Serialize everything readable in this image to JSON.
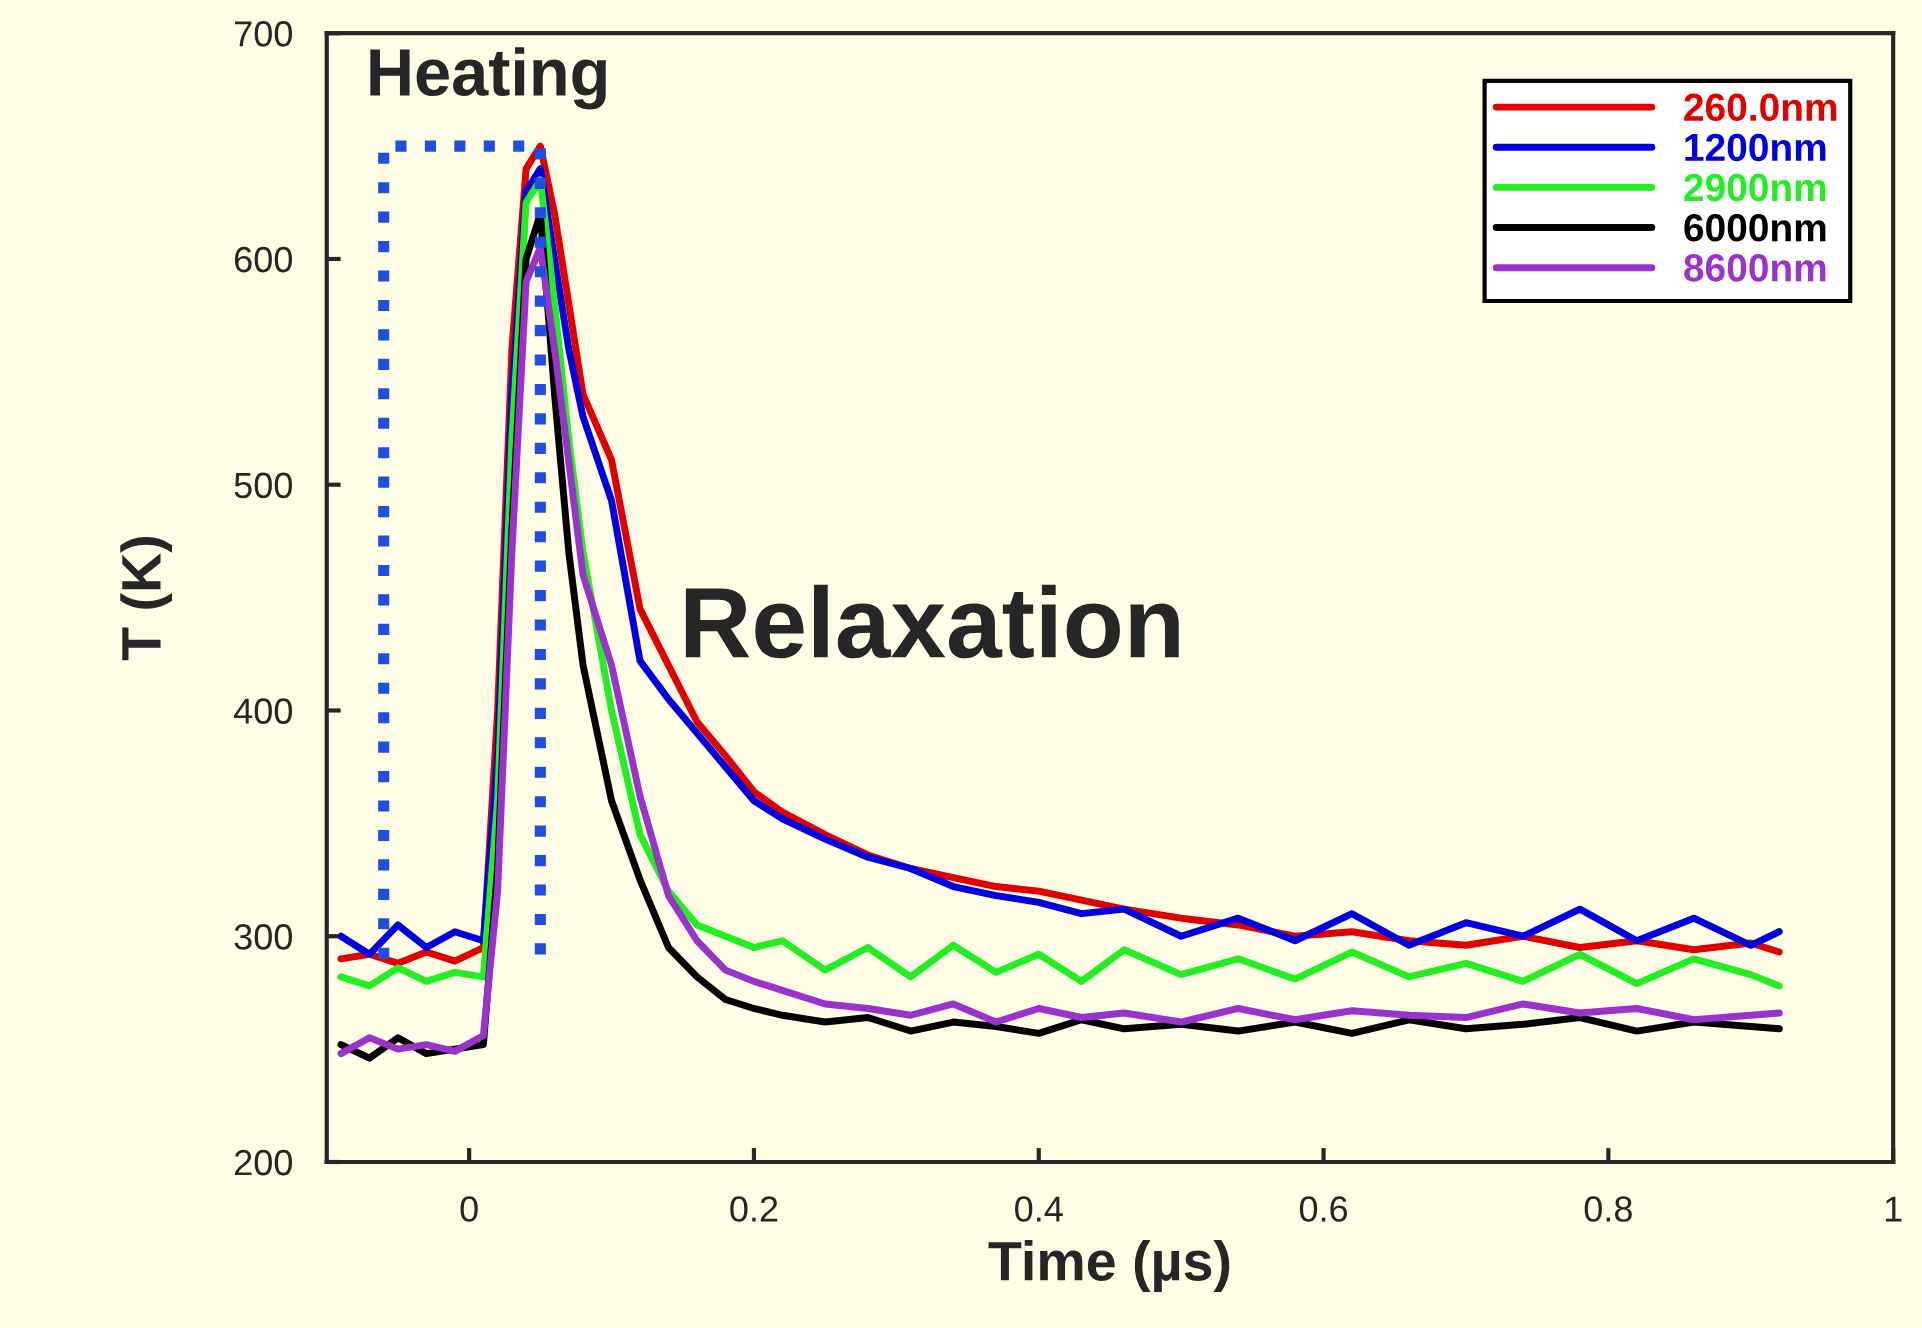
{
  "chart_data": {
    "type": "line",
    "xlabel": "Time (µs)",
    "ylabel": "T (K)",
    "series": [
      {
        "name": "260.0nm",
        "color": "#e00000",
        "x": [
          -0.09,
          -0.07,
          -0.05,
          -0.03,
          -0.01,
          0.01,
          0.02,
          0.03,
          0.04,
          0.05,
          0.06,
          0.07,
          0.08,
          0.1,
          0.12,
          0.14,
          0.16,
          0.18,
          0.2,
          0.22,
          0.25,
          0.28,
          0.31,
          0.34,
          0.37,
          0.4,
          0.43,
          0.46,
          0.5,
          0.54,
          0.58,
          0.62,
          0.66,
          0.7,
          0.74,
          0.78,
          0.82,
          0.86,
          0.9,
          0.92
        ],
        "values": [
          290,
          292,
          288,
          293,
          289,
          295,
          400,
          560,
          640,
          650,
          620,
          580,
          540,
          511,
          445,
          420,
          395,
          380,
          364,
          355,
          345,
          336,
          330,
          326,
          322,
          320,
          316,
          312,
          308,
          305,
          300,
          302,
          298,
          296,
          300,
          295,
          298,
          294,
          297,
          293
        ]
      },
      {
        "name": "1200nm",
        "color": "#0000e0",
        "x": [
          -0.09,
          -0.07,
          -0.05,
          -0.03,
          -0.01,
          0.01,
          0.02,
          0.03,
          0.04,
          0.05,
          0.06,
          0.07,
          0.08,
          0.1,
          0.12,
          0.14,
          0.16,
          0.18,
          0.2,
          0.22,
          0.25,
          0.28,
          0.31,
          0.34,
          0.37,
          0.4,
          0.43,
          0.46,
          0.5,
          0.54,
          0.58,
          0.62,
          0.66,
          0.7,
          0.74,
          0.78,
          0.82,
          0.86,
          0.9,
          0.92
        ],
        "values": [
          300,
          292,
          305,
          295,
          302,
          298,
          380,
          540,
          630,
          640,
          600,
          560,
          530,
          493,
          422,
          405,
          390,
          375,
          360,
          352,
          343,
          335,
          330,
          322,
          318,
          315,
          310,
          312,
          300,
          308,
          298,
          310,
          296,
          306,
          300,
          312,
          298,
          308,
          296,
          302
        ]
      },
      {
        "name": "2900nm",
        "color": "#22ee22",
        "x": [
          -0.09,
          -0.07,
          -0.05,
          -0.03,
          -0.01,
          0.01,
          0.02,
          0.03,
          0.04,
          0.05,
          0.06,
          0.07,
          0.08,
          0.1,
          0.12,
          0.14,
          0.16,
          0.18,
          0.2,
          0.22,
          0.25,
          0.28,
          0.31,
          0.34,
          0.37,
          0.4,
          0.43,
          0.46,
          0.5,
          0.54,
          0.58,
          0.62,
          0.66,
          0.7,
          0.74,
          0.78,
          0.82,
          0.86,
          0.9,
          0.92
        ],
        "values": [
          282,
          278,
          286,
          280,
          284,
          282,
          360,
          520,
          625,
          635,
          580,
          520,
          470,
          400,
          345,
          320,
          305,
          300,
          295,
          298,
          285,
          295,
          282,
          296,
          284,
          292,
          280,
          294,
          283,
          290,
          281,
          293,
          282,
          288,
          280,
          292,
          279,
          290,
          283,
          278
        ]
      },
      {
        "name": "6000nm",
        "color": "#000000",
        "x": [
          -0.09,
          -0.07,
          -0.05,
          -0.03,
          -0.01,
          0.01,
          0.02,
          0.03,
          0.04,
          0.05,
          0.06,
          0.07,
          0.08,
          0.1,
          0.12,
          0.14,
          0.16,
          0.18,
          0.2,
          0.22,
          0.25,
          0.28,
          0.31,
          0.34,
          0.37,
          0.4,
          0.43,
          0.46,
          0.5,
          0.54,
          0.58,
          0.62,
          0.66,
          0.7,
          0.74,
          0.78,
          0.82,
          0.86,
          0.9,
          0.92
        ],
        "values": [
          252,
          246,
          255,
          248,
          250,
          252,
          330,
          480,
          600,
          620,
          540,
          470,
          420,
          360,
          325,
          295,
          282,
          272,
          268,
          265,
          262,
          264,
          258,
          262,
          260,
          257,
          263,
          259,
          261,
          258,
          262,
          257,
          263,
          259,
          261,
          264,
          258,
          262,
          260,
          259
        ]
      },
      {
        "name": "8600nm",
        "color": "#9933cc",
        "x": [
          -0.09,
          -0.07,
          -0.05,
          -0.03,
          -0.01,
          0.01,
          0.02,
          0.03,
          0.04,
          0.05,
          0.06,
          0.07,
          0.08,
          0.1,
          0.12,
          0.14,
          0.16,
          0.18,
          0.2,
          0.22,
          0.25,
          0.28,
          0.31,
          0.34,
          0.37,
          0.4,
          0.43,
          0.46,
          0.5,
          0.54,
          0.58,
          0.62,
          0.66,
          0.7,
          0.74,
          0.78,
          0.82,
          0.86,
          0.9,
          0.92
        ],
        "values": [
          248,
          255,
          250,
          252,
          249,
          256,
          320,
          470,
          590,
          605,
          560,
          510,
          460,
          420,
          362,
          318,
          298,
          285,
          280,
          276,
          270,
          268,
          265,
          270,
          262,
          268,
          264,
          266,
          262,
          268,
          263,
          267,
          265,
          264,
          270,
          266,
          268,
          263,
          265,
          266
        ]
      },
      {
        "color": "#1f4fe0",
        "line_style": "dotted",
        "x": [
          -0.06,
          -0.06,
          0.05,
          0.05
        ],
        "values": [
          290,
          650,
          650,
          290
        ]
      }
    ],
    "annotations": [
      "Heating",
      "Relaxation"
    ],
    "xlim": [
      -0.1,
      1.0
    ],
    "xticks": [
      0,
      0.2,
      0.4,
      0.6,
      0.8,
      1
    ],
    "ylim": [
      200,
      700
    ],
    "yticks": [
      200,
      300,
      400,
      500,
      600,
      700
    ],
    "grid": false,
    "legend": "top right",
    "line_style": "solid"
  }
}
